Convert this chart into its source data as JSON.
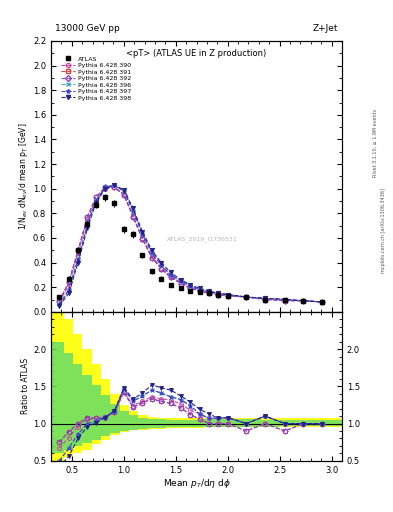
{
  "title_top": "13000 GeV pp",
  "title_right": "Z+Jet",
  "plot_title": "<pT> (ATLAS UE in Z production)",
  "xlabel": "Mean p_{T}/d\\eta d\\phi",
  "ylabel_main": "1/N_{ev} dN_{ev}/d mean p_{T} [GeV]",
  "ylabel_ratio": "Ratio to ATLAS",
  "watermark": "ATLAS_2019_I1736531",
  "right_label": "Rivet 3.1.10, ≥ 1.9M events",
  "right_label2": "mcplots.cern.ch [arXiv:1306.3436]",
  "main_ylim": [
    0,
    2.2
  ],
  "main_yticks": [
    0,
    0.2,
    0.4,
    0.6,
    0.8,
    1.0,
    1.2,
    1.4,
    1.6,
    1.8,
    2.0,
    2.2
  ],
  "ratio_ylim": [
    0.5,
    2.5
  ],
  "ratio_yticks": [
    0.5,
    1.0,
    1.5,
    2.0
  ],
  "xlim": [
    0.3,
    3.1
  ],
  "xticks": [
    0.5,
    1.0,
    1.5,
    2.0,
    2.5,
    3.0
  ],
  "series": [
    {
      "label": "ATLAS",
      "color": "#000000",
      "marker": "s",
      "linestyle": "none",
      "filled": true,
      "x": [
        0.38,
        0.47,
        0.56,
        0.65,
        0.73,
        0.82,
        0.91,
        1.0,
        1.09,
        1.18,
        1.27,
        1.36,
        1.45,
        1.55,
        1.64,
        1.73,
        1.82,
        1.91,
        2.0,
        2.18,
        2.36,
        2.55,
        2.73,
        2.91
      ],
      "y": [
        0.12,
        0.27,
        0.5,
        0.71,
        0.87,
        0.93,
        0.88,
        0.67,
        0.63,
        0.46,
        0.33,
        0.27,
        0.22,
        0.19,
        0.17,
        0.16,
        0.15,
        0.14,
        0.13,
        0.12,
        0.1,
        0.1,
        0.09,
        0.08
      ],
      "yerr": [
        0.02,
        0.02,
        0.03,
        0.03,
        0.03,
        0.03,
        0.03,
        0.03,
        0.03,
        0.02,
        0.02,
        0.02,
        0.01,
        0.01,
        0.01,
        0.01,
        0.01,
        0.01,
        0.01,
        0.01,
        0.01,
        0.01,
        0.01,
        0.01
      ]
    },
    {
      "label": "Pythia 6.428 390",
      "color": "#cc44aa",
      "marker": "o",
      "linestyle": "--",
      "filled": false,
      "x": [
        0.38,
        0.47,
        0.56,
        0.65,
        0.73,
        0.82,
        0.91,
        1.0,
        1.09,
        1.18,
        1.27,
        1.36,
        1.45,
        1.55,
        1.64,
        1.73,
        1.82,
        1.91,
        2.0,
        2.18,
        2.36,
        2.55,
        2.73,
        2.91
      ],
      "y": [
        0.08,
        0.22,
        0.48,
        0.75,
        0.91,
        1.0,
        1.01,
        0.96,
        0.78,
        0.6,
        0.45,
        0.36,
        0.29,
        0.24,
        0.2,
        0.18,
        0.16,
        0.15,
        0.14,
        0.12,
        0.11,
        0.1,
        0.09,
        0.08
      ],
      "ratio": [
        0.67,
        0.81,
        0.96,
        1.06,
        1.05,
        1.08,
        1.15,
        1.43,
        1.24,
        1.3,
        1.36,
        1.33,
        1.32,
        1.26,
        1.18,
        1.13,
        1.07,
        1.07,
        1.08,
        1.0,
        1.1,
        1.0,
        1.0,
        1.0
      ]
    },
    {
      "label": "Pythia 6.428 391",
      "color": "#cc4444",
      "marker": "s",
      "linestyle": "--",
      "filled": false,
      "x": [
        0.38,
        0.47,
        0.56,
        0.65,
        0.73,
        0.82,
        0.91,
        1.0,
        1.09,
        1.18,
        1.27,
        1.36,
        1.45,
        1.55,
        1.64,
        1.73,
        1.82,
        1.91,
        2.0,
        2.18,
        2.36,
        2.55,
        2.73,
        2.91
      ],
      "y": [
        0.09,
        0.24,
        0.5,
        0.77,
        0.93,
        1.01,
        1.01,
        0.95,
        0.77,
        0.59,
        0.44,
        0.35,
        0.28,
        0.23,
        0.19,
        0.17,
        0.15,
        0.14,
        0.13,
        0.12,
        0.1,
        0.09,
        0.09,
        0.08
      ],
      "ratio": [
        0.75,
        0.89,
        1.0,
        1.08,
        1.07,
        1.09,
        1.15,
        1.42,
        1.22,
        1.28,
        1.33,
        1.3,
        1.27,
        1.21,
        1.12,
        1.06,
        1.0,
        1.0,
        1.0,
        0.9,
        1.0,
        0.9,
        1.0,
        1.0
      ]
    },
    {
      "label": "Pythia 6.428 392",
      "color": "#8844cc",
      "marker": "D",
      "linestyle": "--",
      "filled": false,
      "x": [
        0.38,
        0.47,
        0.56,
        0.65,
        0.73,
        0.82,
        0.91,
        1.0,
        1.09,
        1.18,
        1.27,
        1.36,
        1.45,
        1.55,
        1.64,
        1.73,
        1.82,
        1.91,
        2.0,
        2.18,
        2.36,
        2.55,
        2.73,
        2.91
      ],
      "y": [
        0.09,
        0.24,
        0.5,
        0.77,
        0.93,
        1.01,
        1.01,
        0.95,
        0.77,
        0.59,
        0.44,
        0.35,
        0.28,
        0.23,
        0.19,
        0.17,
        0.15,
        0.14,
        0.13,
        0.12,
        0.1,
        0.09,
        0.09,
        0.08
      ],
      "ratio": [
        0.75,
        0.89,
        1.0,
        1.08,
        1.07,
        1.09,
        1.15,
        1.42,
        1.22,
        1.28,
        1.33,
        1.3,
        1.27,
        1.21,
        1.12,
        1.06,
        1.0,
        1.0,
        1.0,
        0.9,
        1.0,
        0.9,
        1.0,
        1.0
      ]
    },
    {
      "label": "Pythia 6.428 396",
      "color": "#44aacc",
      "marker": "x",
      "linestyle": "--",
      "filled": false,
      "x": [
        0.38,
        0.47,
        0.56,
        0.65,
        0.73,
        0.82,
        0.91,
        1.0,
        1.09,
        1.18,
        1.27,
        1.36,
        1.45,
        1.55,
        1.64,
        1.73,
        1.82,
        1.91,
        2.0,
        2.18,
        2.36,
        2.55,
        2.73,
        2.91
      ],
      "y": [
        0.06,
        0.18,
        0.43,
        0.71,
        0.9,
        1.01,
        1.03,
        0.98,
        0.82,
        0.63,
        0.48,
        0.38,
        0.3,
        0.25,
        0.21,
        0.18,
        0.16,
        0.15,
        0.14,
        0.12,
        0.11,
        0.1,
        0.09,
        0.08
      ],
      "ratio": [
        0.5,
        0.67,
        0.86,
        1.0,
        1.03,
        1.09,
        1.17,
        1.46,
        1.3,
        1.37,
        1.45,
        1.41,
        1.36,
        1.32,
        1.24,
        1.13,
        1.07,
        1.07,
        1.08,
        1.0,
        1.1,
        1.0,
        1.0,
        1.0
      ]
    },
    {
      "label": "Pythia 6.428 397",
      "color": "#4444cc",
      "marker": "*",
      "linestyle": "--",
      "filled": false,
      "x": [
        0.38,
        0.47,
        0.56,
        0.65,
        0.73,
        0.82,
        0.91,
        1.0,
        1.09,
        1.18,
        1.27,
        1.36,
        1.45,
        1.55,
        1.64,
        1.73,
        1.82,
        1.91,
        2.0,
        2.18,
        2.36,
        2.55,
        2.73,
        2.91
      ],
      "y": [
        0.06,
        0.18,
        0.43,
        0.71,
        0.9,
        1.01,
        1.03,
        0.98,
        0.82,
        0.63,
        0.48,
        0.38,
        0.3,
        0.25,
        0.21,
        0.18,
        0.16,
        0.15,
        0.14,
        0.12,
        0.11,
        0.1,
        0.09,
        0.08
      ],
      "ratio": [
        0.5,
        0.67,
        0.86,
        1.0,
        1.03,
        1.09,
        1.17,
        1.46,
        1.3,
        1.37,
        1.45,
        1.41,
        1.36,
        1.32,
        1.24,
        1.13,
        1.07,
        1.07,
        1.08,
        1.0,
        1.1,
        1.0,
        1.0,
        1.0
      ]
    },
    {
      "label": "Pythia 6.428 398",
      "color": "#222288",
      "marker": "v",
      "linestyle": "--",
      "filled": true,
      "x": [
        0.38,
        0.47,
        0.56,
        0.65,
        0.73,
        0.82,
        0.91,
        1.0,
        1.09,
        1.18,
        1.27,
        1.36,
        1.45,
        1.55,
        1.64,
        1.73,
        1.82,
        1.91,
        2.0,
        2.18,
        2.36,
        2.55,
        2.73,
        2.91
      ],
      "y": [
        0.05,
        0.15,
        0.4,
        0.68,
        0.88,
        1.0,
        1.03,
        0.99,
        0.84,
        0.65,
        0.5,
        0.4,
        0.32,
        0.26,
        0.22,
        0.19,
        0.17,
        0.15,
        0.14,
        0.12,
        0.11,
        0.1,
        0.09,
        0.08
      ],
      "ratio": [
        0.42,
        0.56,
        0.8,
        0.96,
        1.01,
        1.08,
        1.17,
        1.48,
        1.33,
        1.41,
        1.52,
        1.48,
        1.45,
        1.37,
        1.29,
        1.19,
        1.13,
        1.07,
        1.08,
        1.0,
        1.1,
        1.0,
        1.0,
        1.0
      ]
    }
  ],
  "band_edges": [
    0.3,
    0.42,
    0.51,
    0.6,
    0.69,
    0.78,
    0.87,
    0.96,
    1.05,
    1.14,
    1.23,
    1.32,
    1.41,
    1.5,
    1.59,
    1.68,
    1.77,
    1.87,
    1.96,
    2.14,
    2.32,
    2.5,
    2.69,
    2.87,
    3.1
  ],
  "band_yellow_lo": [
    0.5,
    0.55,
    0.6,
    0.65,
    0.72,
    0.78,
    0.84,
    0.88,
    0.91,
    0.92,
    0.93,
    0.93,
    0.94,
    0.94,
    0.94,
    0.94,
    0.95,
    0.95,
    0.95,
    0.95,
    0.95,
    0.96,
    0.96,
    0.96
  ],
  "band_yellow_hi": [
    2.5,
    2.4,
    2.2,
    2.0,
    1.8,
    1.6,
    1.4,
    1.25,
    1.17,
    1.11,
    1.09,
    1.08,
    1.07,
    1.07,
    1.07,
    1.07,
    1.07,
    1.08,
    1.08,
    1.08,
    1.08,
    1.08,
    1.07,
    1.07
  ],
  "band_green_lo": [
    0.6,
    0.65,
    0.7,
    0.74,
    0.78,
    0.83,
    0.87,
    0.9,
    0.92,
    0.93,
    0.94,
    0.94,
    0.95,
    0.95,
    0.95,
    0.96,
    0.96,
    0.96,
    0.96,
    0.96,
    0.96,
    0.97,
    0.97,
    0.97
  ],
  "band_green_hi": [
    2.1,
    1.95,
    1.8,
    1.65,
    1.52,
    1.38,
    1.26,
    1.17,
    1.11,
    1.08,
    1.06,
    1.06,
    1.05,
    1.05,
    1.05,
    1.05,
    1.06,
    1.06,
    1.06,
    1.06,
    1.05,
    1.05,
    1.05,
    1.05
  ]
}
